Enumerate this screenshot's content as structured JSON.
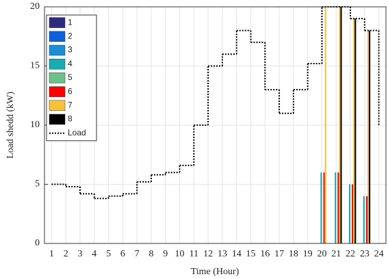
{
  "chart_data": {
    "type": "bar",
    "x_label": "Time (Hour)",
    "y_label": "Load shedd (kW)",
    "categories": [
      "1",
      "2",
      "3",
      "4",
      "5",
      "6",
      "7",
      "8",
      "9",
      "10",
      "11",
      "12",
      "13",
      "14",
      "15",
      "16",
      "17",
      "18",
      "19",
      "20",
      "21",
      "22",
      "23",
      "24"
    ],
    "series": [
      {
        "name": "1",
        "color": "#2e2a7e",
        "values": [
          0,
          0,
          0,
          0,
          0,
          0,
          0,
          0,
          0,
          0,
          0,
          0,
          0,
          0,
          0,
          0,
          0,
          0,
          0,
          0,
          0,
          0,
          0,
          0
        ]
      },
      {
        "name": "2",
        "color": "#0f5fd8",
        "values": [
          0,
          0,
          0,
          0,
          0,
          0,
          0,
          0,
          0,
          0,
          0,
          0,
          0,
          0,
          0,
          0,
          0,
          0,
          0,
          0,
          0,
          0,
          0,
          0
        ]
      },
      {
        "name": "3",
        "color": "#1a8fd6",
        "values": [
          0,
          0,
          0,
          0,
          0,
          0,
          0,
          0,
          0,
          0,
          0,
          0,
          0,
          0,
          0,
          0,
          0,
          0,
          0,
          0,
          0,
          0,
          0,
          0
        ]
      },
      {
        "name": "4",
        "color": "#19aab2",
        "values": [
          0,
          0,
          0,
          0,
          0,
          0,
          0,
          0,
          0,
          0,
          0,
          0,
          0,
          0,
          0,
          0,
          0,
          0,
          0,
          6,
          6,
          5,
          4,
          0
        ]
      },
      {
        "name": "5",
        "color": "#6cc08a",
        "values": [
          0,
          0,
          0,
          0,
          0,
          0,
          0,
          0,
          0,
          0,
          0,
          0,
          0,
          0,
          0,
          0,
          0,
          0,
          0,
          0,
          0,
          0,
          0,
          0
        ]
      },
      {
        "name": "6",
        "color": "#ff0000",
        "values": [
          0,
          0,
          0,
          0,
          0,
          0,
          0,
          0,
          0,
          0,
          0,
          0,
          0,
          0,
          0,
          0,
          0,
          0,
          0,
          6,
          6,
          5,
          4,
          0
        ]
      },
      {
        "name": "7",
        "color": "#f9c03a",
        "values": [
          0,
          0,
          0,
          0,
          0,
          0,
          0,
          0,
          0,
          0,
          0,
          0,
          0,
          0,
          0,
          0,
          0,
          0,
          0,
          20,
          20,
          19,
          18,
          0
        ]
      },
      {
        "name": "8",
        "color": "#000000",
        "values": [
          0,
          0,
          0,
          0,
          0,
          0,
          0,
          0,
          0,
          0,
          0,
          0,
          0,
          0,
          0,
          0,
          0,
          0,
          0,
          0,
          20,
          19,
          18,
          0
        ]
      },
      {
        "name": "Load",
        "type": "stairs",
        "color": "#000000",
        "values": [
          5,
          4.8,
          4.2,
          3.8,
          4,
          4.2,
          5.2,
          5.8,
          6,
          6.6,
          10,
          15,
          16,
          18,
          17,
          13,
          11,
          13,
          15.2,
          20,
          20,
          19,
          18,
          10
        ]
      }
    ],
    "ylim": [
      0,
      20
    ],
    "yticks": [
      0,
      5,
      10,
      15,
      20
    ],
    "grid": true,
    "legend": "upper left"
  }
}
